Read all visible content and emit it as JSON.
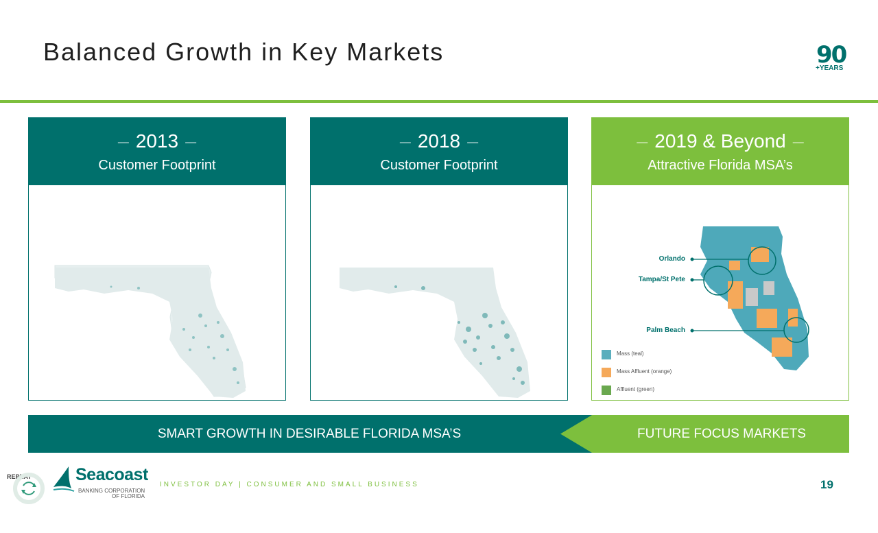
{
  "header": {
    "title": "Balanced Growth in Key Markets",
    "badge_number": "90",
    "badge_text": "+YEARS"
  },
  "cards": [
    {
      "year": "2013",
      "subtitle": "Customer Footprint"
    },
    {
      "year": "2018",
      "subtitle": "Customer Footprint"
    },
    {
      "year": "2019 & Beyond",
      "subtitle": "Attractive Florida MSA’s"
    }
  ],
  "map_callouts": [
    "Orlando",
    "Tampa/St Pete",
    "Palm Beach"
  ],
  "legend": [
    {
      "label": "Mass (teal)",
      "color": "#5aaebd"
    },
    {
      "label": "Mass Affluent (orange)",
      "color": "#f5a95a"
    },
    {
      "label": "Affluent (green)",
      "color": "#6aa84f"
    }
  ],
  "banner": {
    "left": "SMART GROWTH IN DESIRABLE FLORIDA MSA’S",
    "right": "FUTURE FOCUS MARKETS"
  },
  "footer": {
    "repeat_label": "REPEAT",
    "logo_name": "Seacoast",
    "logo_sub": "BANKING CORPORATION",
    "logo_sub2": "OF FLORIDA",
    "text": "INVESTOR DAY | CONSUMER AND SMALL BUSINESS",
    "page": "19"
  },
  "colors": {
    "teal": "#00706c",
    "green": "#7dbf3d"
  }
}
